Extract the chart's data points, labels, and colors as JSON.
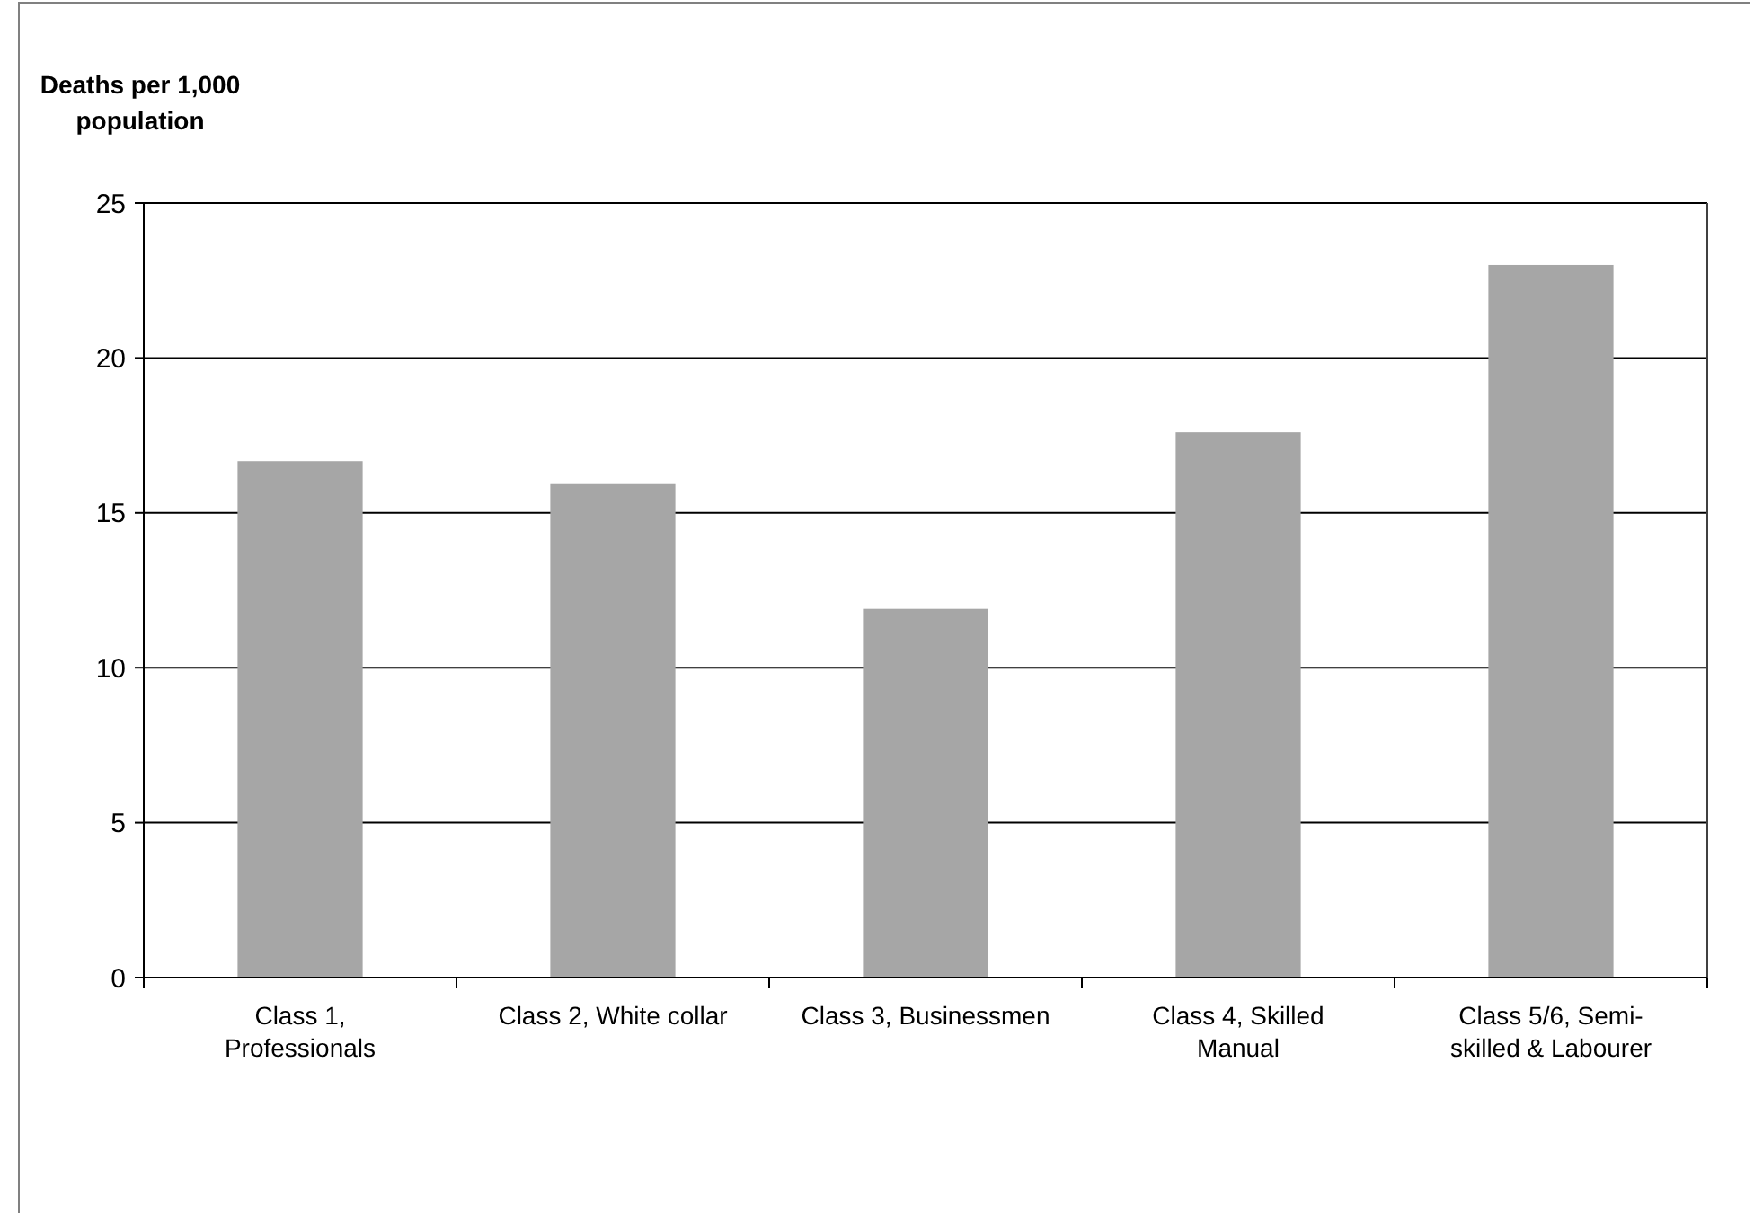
{
  "chart_data": {
    "type": "bar",
    "ylabel": "Deaths per 1,000 population",
    "categories": [
      "Class 1, Professionals",
      "Class 2, White collar",
      "Class 3, Businessmen",
      "Class 4, Skilled Manual",
      "Class 5/6, Semi-skilled & Labourer"
    ],
    "values": [
      16.67,
      15.93,
      11.9,
      17.6,
      23.0
    ],
    "color": "#a6a6a6",
    "ylim": [
      0,
      25
    ],
    "yticks": [
      0,
      5,
      10,
      15,
      20,
      25
    ],
    "grid": "y"
  }
}
